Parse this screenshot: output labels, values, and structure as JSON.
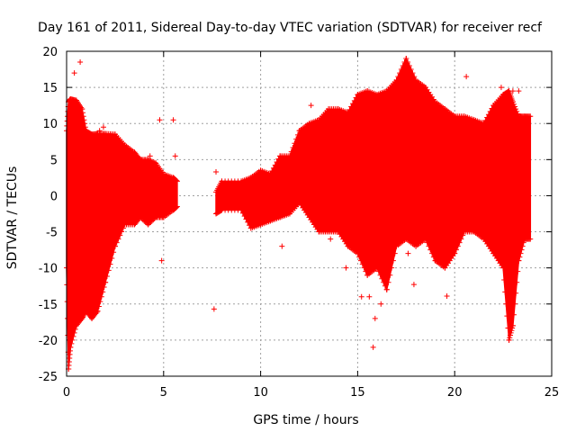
{
  "chart_data": {
    "type": "scatter",
    "title": "Day 161 of 2011, Sidereal Day-to-day VTEC variation (SDTVAR) for receiver recf",
    "xlabel": "GPS time / hours",
    "ylabel": "SDTVAR / TECUs",
    "xlim": [
      0,
      25
    ],
    "ylim": [
      -25,
      20
    ],
    "xticks": [
      "0",
      "5",
      "10",
      "15",
      "20",
      "25"
    ],
    "yticks": [
      "20",
      "15",
      "10",
      "5",
      "0",
      "-5",
      "-10",
      "-15",
      "-20",
      "-25"
    ],
    "grid": true,
    "marker": "+",
    "color": "#ff0000",
    "envelope": {
      "x": [
        0.0,
        0.1,
        0.2,
        0.5,
        0.8,
        1.0,
        1.3,
        1.6,
        2.0,
        2.5,
        3.0,
        3.5,
        3.8,
        4.2,
        4.6,
        5.0,
        5.5,
        5.7,
        7.7,
        8.0,
        9.0,
        9.5,
        10.0,
        10.5,
        11.0,
        11.5,
        12.0,
        12.5,
        13.0,
        13.5,
        14.0,
        14.5,
        15.0,
        15.5,
        16.0,
        16.5,
        17.0,
        17.5,
        18.0,
        18.5,
        19.0,
        19.5,
        20.0,
        20.5,
        21.0,
        21.5,
        22.0,
        22.5,
        22.8,
        23.0,
        23.3,
        23.6,
        23.9
      ],
      "upper": [
        9.0,
        13.0,
        13.4,
        13.2,
        12.0,
        9.0,
        8.5,
        8.6,
        8.6,
        8.5,
        7.0,
        6.0,
        5.0,
        5.0,
        4.5,
        3.0,
        2.5,
        2.0,
        0.5,
        2.0,
        2.0,
        2.5,
        3.5,
        3.0,
        5.5,
        5.5,
        9.0,
        10.0,
        10.5,
        12.0,
        12.0,
        11.5,
        14.0,
        14.5,
        14.0,
        14.5,
        16.0,
        19.0,
        16.0,
        15.0,
        13.0,
        12.0,
        11.0,
        11.0,
        10.5,
        10.0,
        12.5,
        14.0,
        14.5,
        13.0,
        11.0,
        11.0,
        11.0
      ],
      "lower": [
        -10.0,
        -24.0,
        -21.0,
        -18.0,
        -17.0,
        -16.0,
        -17.0,
        -16.0,
        -12.0,
        -7.0,
        -4.0,
        -4.0,
        -3.0,
        -4.0,
        -3.0,
        -3.0,
        -2.0,
        -1.5,
        -2.5,
        -2.0,
        -2.0,
        -4.5,
        -4.0,
        -3.5,
        -3.0,
        -2.5,
        -1.0,
        -3.0,
        -5.0,
        -5.0,
        -5.0,
        -7.0,
        -8.0,
        -11.0,
        -10.0,
        -13.0,
        -7.0,
        -6.0,
        -7.0,
        -6.0,
        -9.0,
        -10.0,
        -8.0,
        -5.0,
        -5.0,
        -6.0,
        -8.0,
        -10.0,
        -20.0,
        -18.0,
        -9.0,
        -6.0,
        -6.0
      ]
    },
    "outliers": {
      "x": [
        0.4,
        0.7,
        1.7,
        1.9,
        4.3,
        4.8,
        4.9,
        5.5,
        5.6,
        7.7,
        7.6,
        11.1,
        12.6,
        13.6,
        14.4,
        15.2,
        15.6,
        15.8,
        15.9,
        16.2,
        17.4,
        17.6,
        17.9,
        19.6,
        20.6,
        22.4,
        23.0,
        23.3
      ],
      "y": [
        17.0,
        18.5,
        9.0,
        9.5,
        5.5,
        10.5,
        -9.0,
        10.5,
        5.5,
        3.3,
        -15.7,
        -7.0,
        12.5,
        -6.0,
        -10.0,
        -14.0,
        -14.0,
        -21.0,
        -17.0,
        -15.0,
        14.0,
        -8.0,
        -12.3,
        -13.9,
        16.5,
        15.0,
        14.5,
        14.5
      ]
    }
  }
}
